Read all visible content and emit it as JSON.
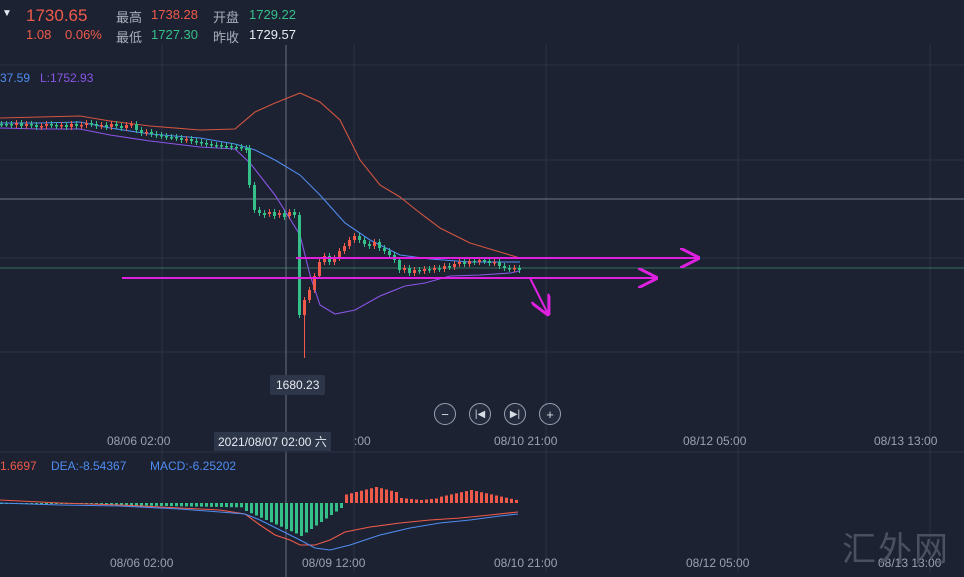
{
  "header": {
    "dropdown_icon": "caret-down-icon",
    "price": "1730.65",
    "change": "1.08",
    "change_pct": "0.06%",
    "high_label": "最高",
    "high_value": "1738.28",
    "low_label": "最低",
    "low_value": "1727.30",
    "open_label": "开盘",
    "open_value": "1729.22",
    "prev_close_label": "昨收",
    "prev_close_value": "1729.57"
  },
  "bollinger_legend": {
    "mid_partial": "37.59",
    "lower": "L:1752.93"
  },
  "low_marker": "1680.23",
  "crosshair_date": "2021/08/07 02:00 六",
  "x_ticks_main": [
    "08/06 02:00",
    ":00",
    "08/10 21:00",
    "08/12 05:00",
    "08/13 13:00"
  ],
  "x_ticks_macd": [
    "08/06 02:00",
    "08/09 12:00",
    "08/10 21:00",
    "08/12 05:00",
    "08/13 13:00"
  ],
  "macd_legend": {
    "dif_partial": "1.6697",
    "dea": "DEA:-8.54367",
    "macd": "MACD:-6.25202"
  },
  "controls": {
    "zoom_out": "zoom-out-icon",
    "prev": "skip-back-icon",
    "next": "skip-forward-icon",
    "zoom_in": "zoom-in-icon"
  },
  "watermark": "汇外网",
  "colors": {
    "up": "#f05a4a",
    "down": "#35c08a",
    "boll_upper": "#d2553f",
    "boll_mid": "#4f8cf0",
    "boll_lower": "#8a55e6",
    "annotation": "#e020e0",
    "background": "#1c2232"
  },
  "chart_data": {
    "type": "candlestick",
    "price_reference": {
      "high": 1738.28,
      "low_marker": 1680.23
    },
    "annotations": [
      "horizontal arrow at ~1717 to the right",
      "horizontal arrow at ~1713 to the right",
      "downward arrow after last candle"
    ],
    "indicators": [
      "Bollinger Bands",
      "MACD (DIF, DEA, histogram)"
    ]
  }
}
